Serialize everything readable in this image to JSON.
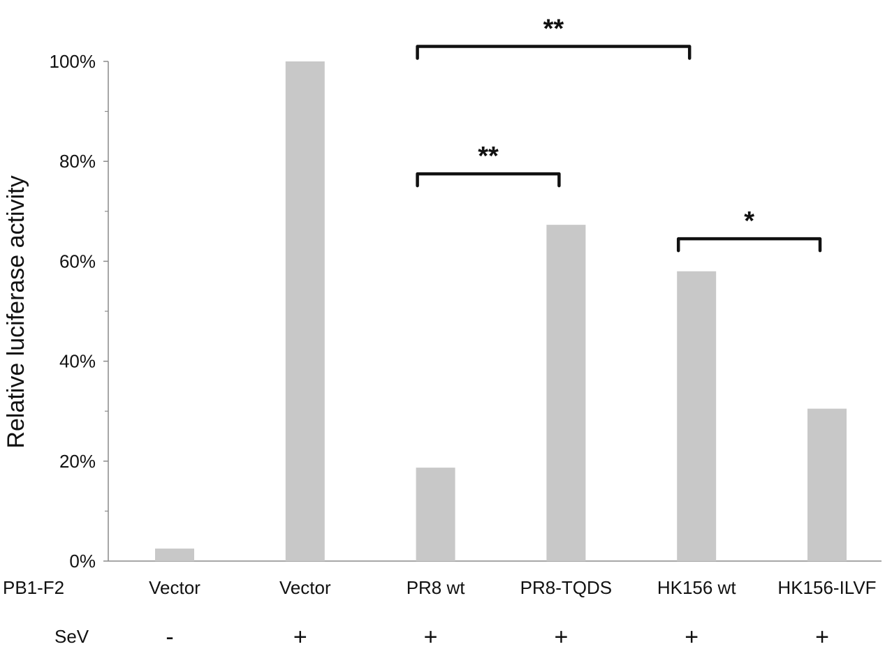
{
  "chart_data": {
    "type": "bar",
    "ylabel": "Relative luciferase activity",
    "ylim": [
      0,
      100
    ],
    "yticks": [
      0,
      20,
      40,
      60,
      80,
      100
    ],
    "ytick_labels": [
      "0%",
      "20%",
      "40%",
      "60%",
      "80%",
      "100%"
    ],
    "bar_color": "#c8c8c8",
    "categories": [
      "Vector",
      "Vector",
      "PR8 wt",
      "PR8-TQDS",
      "HK156 wt",
      "HK156-ILVF"
    ],
    "values": [
      2.5,
      100,
      18.7,
      67.3,
      58,
      30.5
    ],
    "row_labels": {
      "pb1f2": "PB1-F2",
      "sev": "SeV"
    },
    "sev": [
      "-",
      "+",
      "+",
      "+",
      "+",
      "+"
    ],
    "significance": [
      {
        "from": 2,
        "to": 4,
        "label": "**",
        "y": 103
      },
      {
        "from": 2,
        "to": 3,
        "label": "**",
        "y": 77.5
      },
      {
        "from": 4,
        "to": 5,
        "label": "*",
        "y": 64.5
      }
    ]
  }
}
